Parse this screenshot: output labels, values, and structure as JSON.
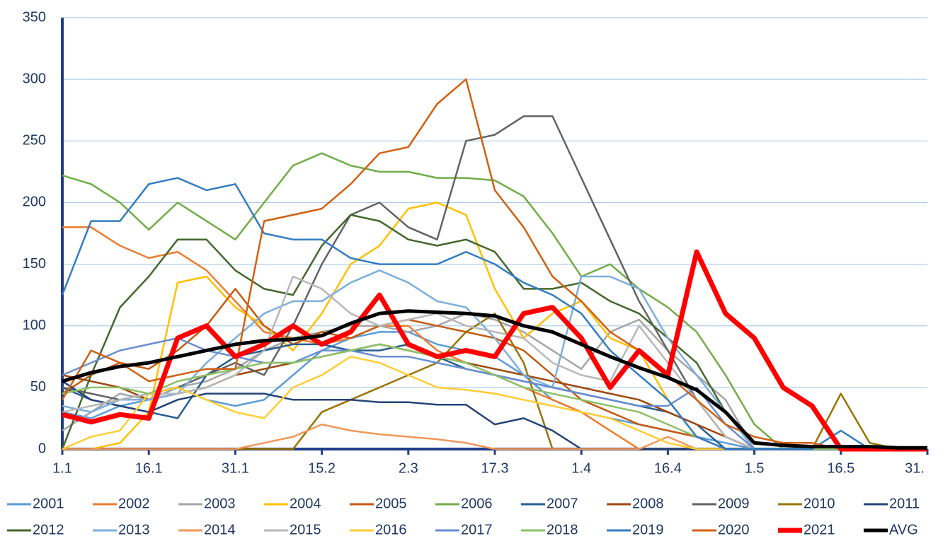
{
  "chart_data": {
    "type": "line",
    "categories": [
      "1.1",
      null,
      null,
      "16.1",
      null,
      null,
      "31.1",
      null,
      null,
      "15.2",
      null,
      null,
      "2.3",
      null,
      null,
      "17.3",
      null,
      null,
      "1.4",
      null,
      null,
      "16.4",
      null,
      null,
      "1.5",
      null,
      null,
      "16.5",
      null,
      null,
      "31."
    ],
    "ylim": [
      0,
      350
    ],
    "yticks": [
      0,
      50,
      100,
      150,
      200,
      250,
      300,
      350
    ],
    "grid": true,
    "legend": "bottom",
    "series": [
      {
        "name": "2001",
        "color": "#5b9bd5",
        "line_width": 2.5,
        "values": [
          30,
          25,
          35,
          40,
          50,
          40,
          35,
          40,
          60,
          80,
          90,
          95,
          95,
          85,
          80,
          75,
          60,
          40,
          30,
          25,
          20,
          15,
          10,
          5,
          0,
          0,
          0,
          0,
          0,
          0,
          0
        ]
      },
      {
        "name": "2002",
        "color": "#ed7d31",
        "line_width": 2.5,
        "values": [
          180,
          180,
          165,
          155,
          160,
          145,
          120,
          95,
          90,
          85,
          90,
          100,
          100,
          80,
          70,
          60,
          50,
          40,
          30,
          15,
          0,
          0,
          0,
          0,
          0,
          0,
          0,
          0,
          0,
          0,
          0
        ]
      },
      {
        "name": "2003",
        "color": "#a5a5a5",
        "line_width": 2.5,
        "values": [
          15,
          30,
          45,
          40,
          50,
          55,
          65,
          80,
          90,
          95,
          100,
          100,
          95,
          100,
          110,
          105,
          95,
          80,
          65,
          95,
          105,
          80,
          60,
          40,
          0,
          0,
          0,
          0,
          0,
          0,
          0
        ]
      },
      {
        "name": "2004",
        "color": "#ffc000",
        "line_width": 2.5,
        "values": [
          0,
          0,
          5,
          30,
          135,
          140,
          115,
          100,
          80,
          110,
          150,
          165,
          195,
          200,
          190,
          130,
          90,
          110,
          120,
          90,
          80,
          40,
          10,
          0,
          0,
          0,
          0,
          0,
          0,
          0,
          0
        ]
      },
      {
        "name": "2005",
        "color": "#c55a11",
        "line_width": 2.5,
        "values": [
          45,
          60,
          70,
          65,
          80,
          100,
          130,
          100,
          85,
          95,
          90,
          100,
          105,
          100,
          95,
          90,
          80,
          60,
          40,
          30,
          20,
          15,
          10,
          0,
          0,
          0,
          0,
          0,
          0,
          0,
          0
        ]
      },
      {
        "name": "2006",
        "color": "#70ad47",
        "line_width": 2.5,
        "values": [
          222,
          215,
          200,
          178,
          200,
          185,
          170,
          200,
          230,
          240,
          230,
          225,
          225,
          220,
          220,
          218,
          205,
          175,
          140,
          150,
          130,
          115,
          95,
          60,
          20,
          0,
          0,
          0,
          0,
          0,
          0
        ]
      },
      {
        "name": "2007",
        "color": "#255e91",
        "line_width": 2.5,
        "values": [
          50,
          40,
          35,
          30,
          25,
          60,
          75,
          80,
          85,
          85,
          80,
          80,
          85,
          75,
          65,
          60,
          55,
          50,
          45,
          40,
          35,
          30,
          20,
          0,
          0,
          0,
          0,
          0,
          0,
          0,
          0
        ]
      },
      {
        "name": "2008",
        "color": "#9e480e",
        "line_width": 2.5,
        "values": [
          60,
          55,
          50,
          40,
          45,
          50,
          60,
          65,
          70,
          75,
          80,
          85,
          80,
          75,
          70,
          65,
          60,
          55,
          50,
          45,
          40,
          30,
          20,
          10,
          0,
          0,
          0,
          0,
          0,
          0,
          0
        ]
      },
      {
        "name": "2009",
        "color": "#636363",
        "line_width": 2.5,
        "values": [
          50,
          45,
          40,
          45,
          50,
          60,
          70,
          60,
          100,
          150,
          190,
          200,
          180,
          170,
          250,
          255,
          270,
          270,
          220,
          170,
          120,
          80,
          40,
          10,
          0,
          0,
          0,
          0,
          0,
          0,
          0
        ]
      },
      {
        "name": "2010",
        "color": "#997300",
        "line_width": 2.5,
        "values": [
          0,
          0,
          0,
          0,
          0,
          0,
          0,
          0,
          0,
          30,
          40,
          50,
          60,
          70,
          95,
          110,
          70,
          0,
          0,
          0,
          0,
          0,
          0,
          0,
          0,
          0,
          0,
          45,
          5,
          0,
          0
        ]
      },
      {
        "name": "2011",
        "color": "#264478",
        "line_width": 2.5,
        "values": [
          55,
          40,
          35,
          30,
          40,
          45,
          45,
          45,
          40,
          40,
          40,
          38,
          38,
          36,
          36,
          20,
          25,
          15,
          0,
          0,
          0,
          0,
          0,
          0,
          0,
          0,
          0,
          0,
          0,
          0,
          0
        ]
      },
      {
        "name": "2012",
        "color": "#43682b",
        "line_width": 2.5,
        "values": [
          0,
          60,
          115,
          140,
          170,
          170,
          145,
          130,
          125,
          165,
          190,
          185,
          170,
          165,
          170,
          160,
          130,
          130,
          135,
          120,
          110,
          90,
          70,
          30,
          0,
          0,
          0,
          0,
          0,
          0,
          0
        ]
      },
      {
        "name": "2013",
        "color": "#7cafdd",
        "line_width": 2.5,
        "values": [
          35,
          30,
          40,
          40,
          45,
          70,
          90,
          110,
          120,
          120,
          135,
          145,
          135,
          120,
          115,
          90,
          60,
          50,
          140,
          140,
          130,
          90,
          60,
          30,
          0,
          0,
          0,
          0,
          0,
          0,
          0
        ]
      },
      {
        "name": "2014",
        "color": "#f1975a",
        "line_width": 2.5,
        "values": [
          0,
          0,
          0,
          0,
          0,
          0,
          0,
          5,
          10,
          20,
          15,
          12,
          10,
          8,
          5,
          0,
          0,
          0,
          0,
          0,
          0,
          10,
          0,
          0,
          0,
          0,
          0,
          0,
          0,
          0,
          0
        ]
      },
      {
        "name": "2015",
        "color": "#b7b7b7",
        "line_width": 2.5,
        "values": [
          30,
          35,
          40,
          45,
          45,
          50,
          60,
          80,
          140,
          130,
          110,
          100,
          105,
          110,
          100,
          95,
          90,
          70,
          60,
          55,
          100,
          70,
          40,
          10,
          0,
          0,
          0,
          0,
          0,
          0,
          0
        ]
      },
      {
        "name": "2016",
        "color": "#ffcd33",
        "line_width": 2.5,
        "values": [
          0,
          10,
          15,
          45,
          50,
          40,
          30,
          25,
          50,
          60,
          75,
          70,
          60,
          50,
          48,
          45,
          40,
          35,
          30,
          25,
          15,
          5,
          0,
          0,
          0,
          0,
          0,
          0,
          0,
          0,
          0
        ]
      },
      {
        "name": "2017",
        "color": "#698ed0",
        "line_width": 2.5,
        "values": [
          60,
          70,
          80,
          85,
          90,
          80,
          75,
          70,
          70,
          80,
          80,
          75,
          75,
          70,
          65,
          60,
          55,
          50,
          45,
          40,
          35,
          35,
          50,
          20,
          0,
          0,
          0,
          0,
          0,
          0,
          0
        ]
      },
      {
        "name": "2018",
        "color": "#8cc168",
        "line_width": 2.5,
        "values": [
          45,
          50,
          50,
          45,
          55,
          60,
          65,
          70,
          70,
          75,
          80,
          85,
          80,
          75,
          70,
          60,
          50,
          45,
          40,
          35,
          30,
          20,
          10,
          0,
          0,
          0,
          0,
          0,
          0,
          0,
          0
        ]
      },
      {
        "name": "2019",
        "color": "#327dc2",
        "line_width": 2.5,
        "values": [
          125,
          185,
          185,
          215,
          220,
          210,
          215,
          175,
          170,
          170,
          155,
          150,
          150,
          150,
          160,
          150,
          135,
          125,
          110,
          80,
          60,
          40,
          10,
          0,
          0,
          0,
          0,
          15,
          0,
          0,
          0
        ]
      },
      {
        "name": "2020",
        "color": "#d26012",
        "line_width": 2.5,
        "values": [
          40,
          80,
          70,
          55,
          60,
          65,
          65,
          185,
          190,
          195,
          215,
          240,
          245,
          280,
          300,
          210,
          180,
          140,
          120,
          95,
          80,
          60,
          40,
          20,
          10,
          5,
          5,
          0,
          0,
          0,
          0
        ]
      },
      {
        "name": "2021",
        "color": "#ff0000",
        "line_width": 7,
        "values": [
          28,
          22,
          28,
          25,
          90,
          100,
          75,
          85,
          100,
          85,
          95,
          125,
          85,
          75,
          80,
          75,
          110,
          115,
          90,
          50,
          80,
          60,
          160,
          110,
          90,
          50,
          35,
          0,
          0,
          0,
          0
        ]
      },
      {
        "name": "AVG",
        "color": "#000000",
        "line_width": 5,
        "values": [
          55,
          62,
          67,
          70,
          75,
          80,
          85,
          88,
          89,
          92,
          102,
          110,
          112,
          111,
          110,
          108,
          100,
          95,
          85,
          75,
          66,
          58,
          48,
          30,
          5,
          3,
          2,
          2,
          2,
          1,
          1
        ]
      }
    ]
  }
}
